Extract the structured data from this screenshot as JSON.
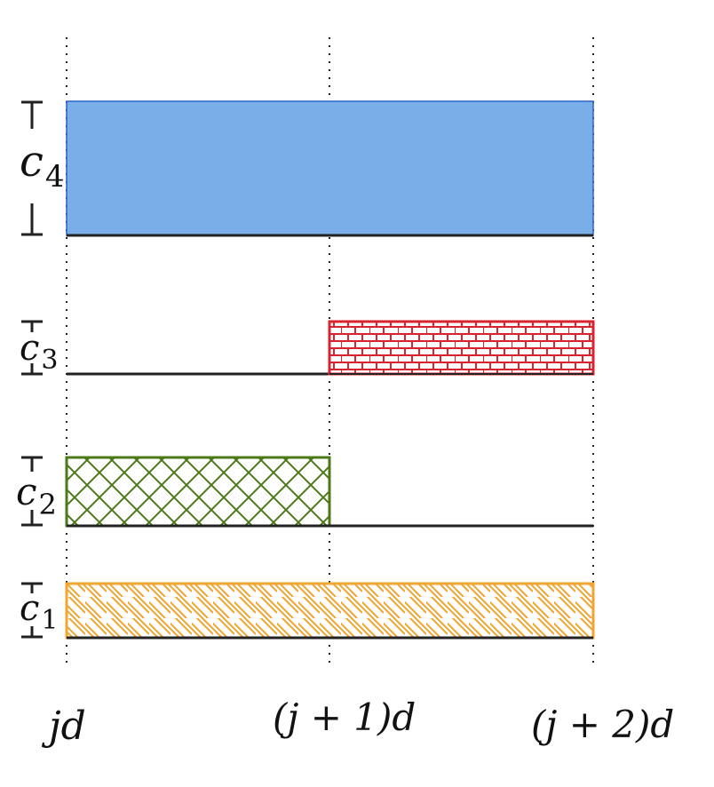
{
  "colors": {
    "c4": "#7aaee9",
    "c4_stroke": "#2a63c9",
    "c3": "#d9232e",
    "c2": "#4c7a18",
    "c1": "#f2a531",
    "axis": "#222222"
  },
  "x_labels": {
    "left": "jd",
    "middle": "(j + 1)d",
    "right": "(j + 2)d"
  },
  "rows": [
    {
      "id": "c4",
      "label_base": "c",
      "label_sub": "4",
      "pattern": "solid"
    },
    {
      "id": "c3",
      "label_base": "c",
      "label_sub": "3",
      "pattern": "brick"
    },
    {
      "id": "c2",
      "label_base": "c",
      "label_sub": "2",
      "pattern": "crosshatch"
    },
    {
      "id": "c1",
      "label_base": "c",
      "label_sub": "1",
      "pattern": "diagonal"
    }
  ]
}
